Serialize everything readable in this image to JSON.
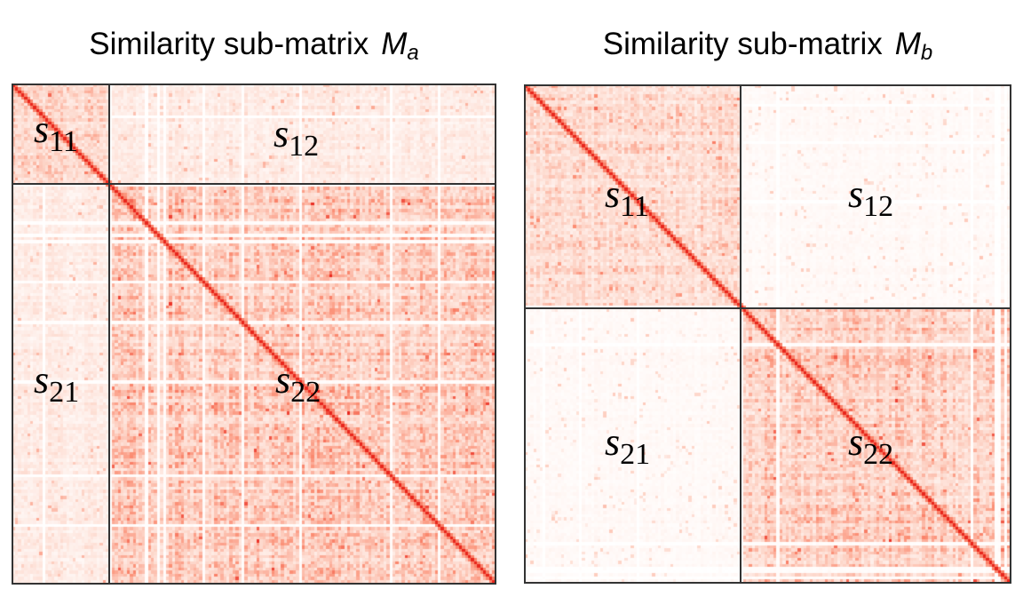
{
  "chart_data": [
    {
      "type": "heatmap",
      "title_text": "Similarity sub-matrix",
      "title_symbol": "M",
      "title_subscript": "a",
      "colormap": [
        "#ffffff",
        "#fdd5c8",
        "#fb8c72",
        "#e8261d"
      ],
      "blocks": [
        {
          "label_main": "s",
          "label_sub": "11"
        },
        {
          "label_main": "s",
          "label_sub": "12"
        },
        {
          "label_main": "s",
          "label_sub": "21"
        },
        {
          "label_main": "s",
          "label_sub": "22"
        }
      ]
    },
    {
      "type": "heatmap",
      "title_text": "Similarity sub-matrix",
      "title_symbol": "M",
      "title_subscript": "b",
      "colormap": [
        "#ffffff",
        "#fdd5c8",
        "#fb8c72",
        "#e8261d"
      ],
      "blocks": [
        {
          "label_main": "s",
          "label_sub": "11"
        },
        {
          "label_main": "s",
          "label_sub": "12"
        },
        {
          "label_main": "s",
          "label_sub": "21"
        },
        {
          "label_main": "s",
          "label_sub": "22"
        }
      ]
    }
  ]
}
